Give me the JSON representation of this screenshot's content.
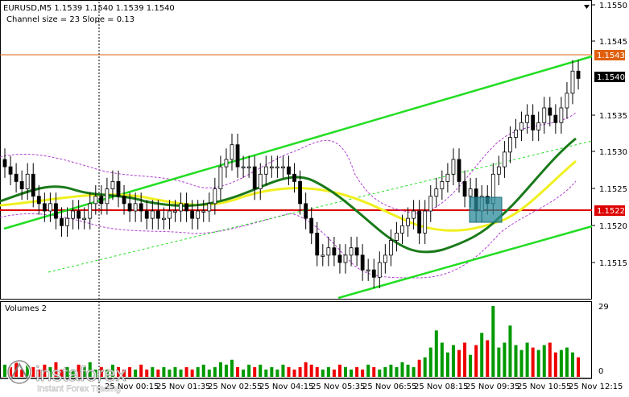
{
  "header": {
    "symbol_line": "EURUSD,M5  1.1539 1.1540 1.1539 1.1540",
    "indicator_line": "Channel size = 23 Slope = 0.13"
  },
  "volume_panel": {
    "label": "Volumes 2",
    "scale_top": "29",
    "scale_bottom": "0"
  },
  "price_badges": {
    "top_line": "1.1543",
    "current": "1.1540",
    "support_line": "1.1522"
  },
  "price_axis_labels": [
    "1.1550",
    "1.1545",
    "1.1535",
    "1.1530",
    "1.1525",
    "1.1520",
    "1.1515"
  ],
  "time_axis_labels": [
    "25 Nov 00:15",
    "25 Nov 01:35",
    "25 Nov 02:55",
    "25 Nov 04:15",
    "25 Nov 05:35",
    "25 Nov 06:55",
    "25 Nov 08:15",
    "25 Nov 09:35",
    "25 Nov 10:55",
    "25 Nov 12:15"
  ],
  "watermark": {
    "brand": "instaforex",
    "tagline": "Instant Forex Trading"
  },
  "colors": {
    "channel": "#22dd22",
    "ma_fast": "#1a7a1a",
    "ma_slow": "#f0f020",
    "support_line": "#dd0000",
    "resistance_line": "#e06010",
    "bull_bar": "#009900",
    "bear_bar": "#ee0000",
    "entry_box": "#2a8a9a"
  },
  "chart_data": {
    "type": "candlestick",
    "symbol": "EURUSD",
    "timeframe": "M5",
    "ylim": [
      1.1511,
      1.1552
    ],
    "horizontal_levels": [
      1.1543,
      1.1522
    ],
    "close_series": [
      1.1528,
      1.1527,
      1.1526,
      1.1525,
      1.1527,
      1.1524,
      1.1523,
      1.1522,
      1.1523,
      1.1521,
      1.152,
      1.1521,
      1.1522,
      1.1521,
      1.1521,
      1.1523,
      1.1524,
      1.1523,
      1.1525,
      1.1526,
      1.1524,
      1.1523,
      1.1522,
      1.1523,
      1.1522,
      1.1521,
      1.1522,
      1.1521,
      1.1521,
      1.1522,
      1.1522,
      1.1523,
      1.1522,
      1.1521,
      1.1522,
      1.1522,
      1.1523,
      1.1525,
      1.1528,
      1.1529,
      1.1531,
      1.1528,
      1.1528,
      1.1528,
      1.1525,
      1.1527,
      1.1528,
      1.1528,
      1.1528,
      1.1528,
      1.1527,
      1.1526,
      1.1523,
      1.1521,
      1.1519,
      1.1516,
      1.1516,
      1.1517,
      1.1516,
      1.1515,
      1.1516,
      1.1517,
      1.1516,
      1.1514,
      1.1514,
      1.1513,
      1.1515,
      1.1516,
      1.1518,
      1.1519,
      1.152,
      1.1521,
      1.1522,
      1.1519,
      1.1522,
      1.1524,
      1.1525,
      1.1526,
      1.1527,
      1.1529,
      1.1526,
      1.1524,
      1.1525,
      1.1522,
      1.1524,
      1.1523,
      1.1527,
      1.1528,
      1.153,
      1.1532,
      1.1533,
      1.1534,
      1.1535,
      1.1533,
      1.1534,
      1.1536,
      1.1535,
      1.1534,
      1.1536,
      1.1538,
      1.1541,
      1.154
    ],
    "volume_series": [
      5,
      4,
      6,
      3,
      5,
      4,
      3,
      5,
      4,
      6,
      3,
      4,
      3,
      5,
      4,
      6,
      3,
      4,
      3,
      5,
      4,
      3,
      4,
      3,
      5,
      3,
      4,
      3,
      4,
      3,
      4,
      3,
      4,
      3,
      4,
      5,
      3,
      4,
      6,
      5,
      7,
      4,
      3,
      5,
      4,
      5,
      3,
      4,
      3,
      5,
      4,
      3,
      4,
      6,
      5,
      4,
      3,
      4,
      3,
      5,
      4,
      3,
      4,
      3,
      5,
      4,
      3,
      4,
      5,
      4,
      6,
      5,
      4,
      7,
      8,
      12,
      19,
      14,
      10,
      13,
      11,
      14,
      9,
      13,
      18,
      15,
      29,
      12,
      14,
      21,
      13,
      11,
      14,
      12,
      11,
      13,
      14,
      10,
      11,
      12,
      10,
      8
    ],
    "channel_upper": [
      [
        1.1525,
        1.1532
      ],
      [
        1.1543,
        1.1543
      ]
    ],
    "channel_lower": [
      [
        1.1511,
        1.152
      ]
    ]
  }
}
